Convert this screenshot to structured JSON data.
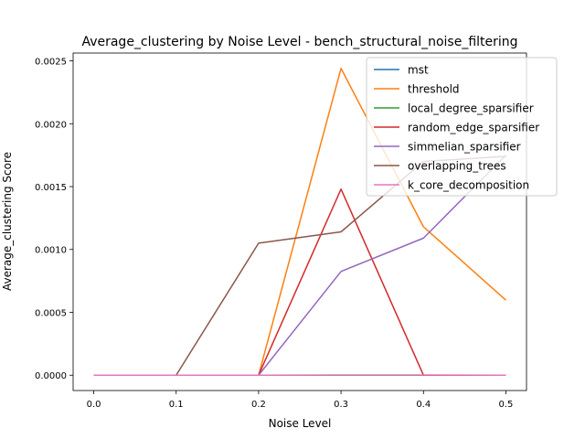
{
  "chart_data": {
    "type": "line",
    "title": "Average_clustering by Noise Level - bench_structural_noise_filtering",
    "xlabel": "Noise Level",
    "ylabel": "Average_clustering Score",
    "x": [
      0.0,
      0.1,
      0.2,
      0.3,
      0.4,
      0.5
    ],
    "xticks": [
      "0.0",
      "0.1",
      "0.2",
      "0.3",
      "0.4",
      "0.5"
    ],
    "yticks": [
      "0.0000",
      "0.0005",
      "0.0010",
      "0.0015",
      "0.0020",
      "0.0025"
    ],
    "xlim": [
      -0.025,
      0.525
    ],
    "ylim": [
      -0.000122,
      0.002562
    ],
    "grid": false,
    "legend_position": "top-right",
    "series": [
      {
        "name": "mst",
        "color": "#1f77b4",
        "values": [
          0,
          0,
          0,
          0,
          0,
          0
        ]
      },
      {
        "name": "threshold",
        "color": "#ff7f0e",
        "values": [
          0,
          0,
          0,
          0.00244,
          0.00118,
          0.000597
        ]
      },
      {
        "name": "local_degree_sparsifier",
        "color": "#2ca02c",
        "values": [
          0,
          0,
          0,
          0,
          0,
          0
        ]
      },
      {
        "name": "random_edge_sparsifier",
        "color": "#d62728",
        "values": [
          0,
          0,
          0,
          0.00148,
          0,
          0
        ]
      },
      {
        "name": "simmelian_sparsifier",
        "color": "#9467bd",
        "values": [
          0,
          0,
          0,
          0.000825,
          0.00109,
          0.00175
        ]
      },
      {
        "name": "overlapping_trees",
        "color": "#8c564b",
        "values": [
          0,
          0,
          0.00105,
          0.00114,
          0.0017,
          0.00174
        ]
      },
      {
        "name": "k_core_decomposition",
        "color": "#e377c2",
        "values": [
          0,
          0,
          0,
          2e-06,
          2e-06,
          0
        ]
      }
    ]
  }
}
